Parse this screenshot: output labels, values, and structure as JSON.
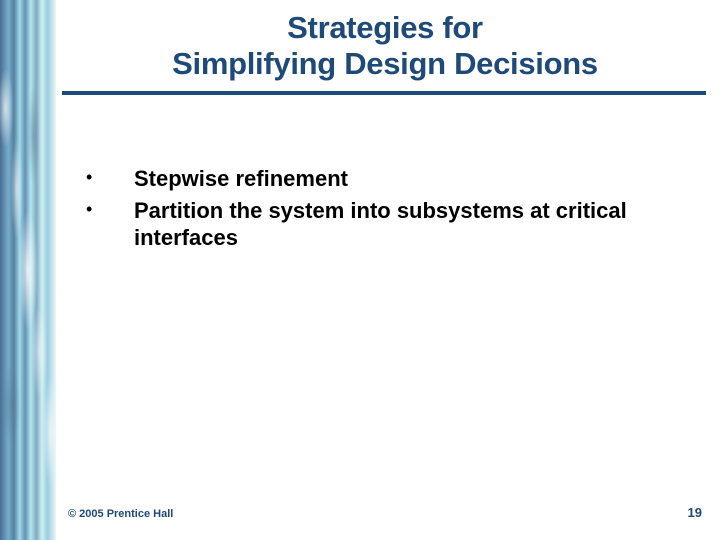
{
  "title": {
    "line1": "Strategies for",
    "line2": "Simplifying Design Decisions"
  },
  "bullets": [
    {
      "text": "Stepwise refinement"
    },
    {
      "text": "Partition the system into subsystems at critical interfaces"
    }
  ],
  "footer": {
    "copyright": "© 2005 Prentice Hall",
    "page": "19"
  },
  "colors": {
    "title": "#1e4a7a",
    "underline": "#1e4a7a",
    "body_text": "#000000",
    "footer_text": "#1e4a7a",
    "background": "#ffffff"
  }
}
